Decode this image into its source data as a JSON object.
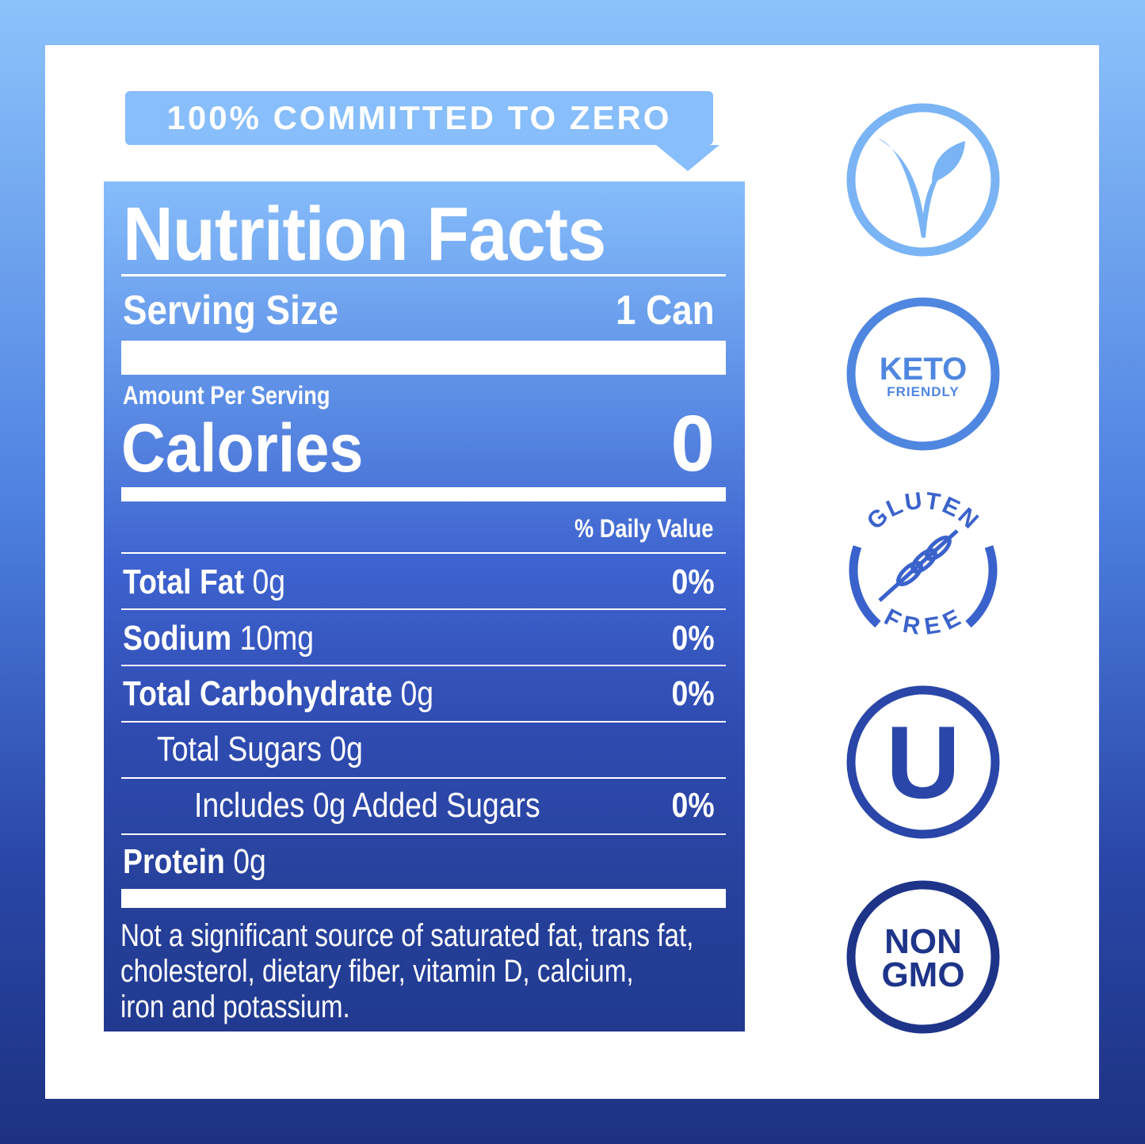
{
  "banner": {
    "text": "100% COMMITTED TO ZERO"
  },
  "label": {
    "title": "Nutrition Facts",
    "serving_size_label": "Serving Size",
    "serving_size_value": "1 Can",
    "amount_per_serving": "Amount Per Serving",
    "calories_label": "Calories",
    "calories_value": "0",
    "daily_value_header": "% Daily Value",
    "rows": [
      {
        "name": "Total Fat",
        "amount": "0g",
        "dv": "0%"
      },
      {
        "name": "Sodium",
        "amount": "10mg",
        "dv": "0%"
      },
      {
        "name": "Total Carbohydrate",
        "amount": "0g",
        "dv": "0%"
      },
      {
        "name": "Total Sugars 0g",
        "amount": "",
        "dv": ""
      },
      {
        "name": "Includes 0g Added Sugars",
        "amount": "",
        "dv": "0%"
      },
      {
        "name": "Protein",
        "amount": "0g",
        "dv": ""
      }
    ],
    "footnote": [
      "Not a significant source of saturated fat, trans fat,",
      "cholesterol, dietary fiber, vitamin D, calcium,",
      "iron and potassium."
    ]
  },
  "badges": {
    "vegan": {
      "icon": "vegan-v-leaf-icon",
      "color": "#7ab4f5"
    },
    "keto": {
      "line1": "KETO",
      "line2": "FRIENDLY",
      "color": "#4f86e0"
    },
    "gluten": {
      "top": "GLUTEN",
      "bottom": "FREE",
      "icon": "wheat-icon",
      "color": "#3a62cc"
    },
    "kosher": {
      "letter": "U",
      "color": "#2a46a8"
    },
    "nongmo": {
      "line1": "NON",
      "line2": "GMO",
      "color": "#1e3489"
    }
  }
}
